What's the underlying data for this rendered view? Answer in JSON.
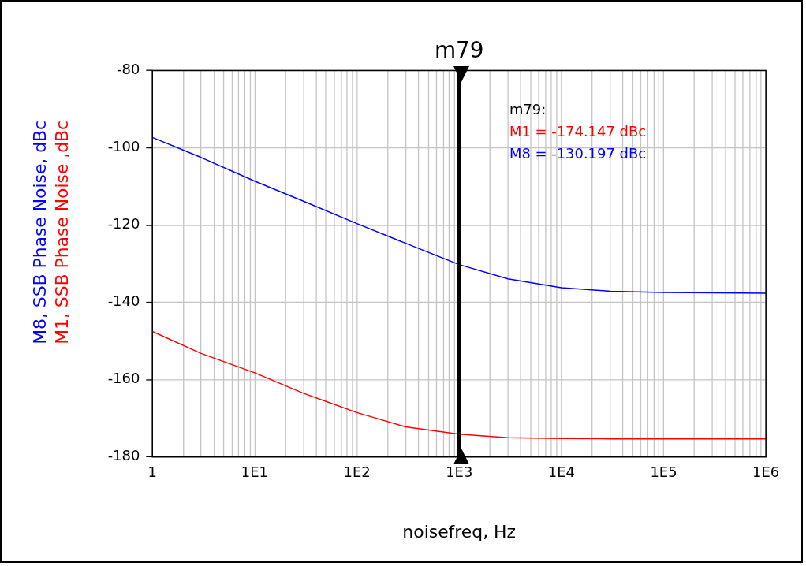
{
  "chart_data": {
    "type": "line",
    "xlabel": "noisefreq, Hz",
    "log": "x",
    "xlim": [
      1,
      1000000
    ],
    "xticks": [
      1,
      {
        "value": 10,
        "label": "1E1"
      },
      {
        "value": 100,
        "label": "1E2"
      },
      {
        "value": 1000,
        "label": "1E3"
      },
      {
        "value": 10000,
        "label": "1E4"
      },
      {
        "value": 100000,
        "label": "1E5"
      },
      {
        "value": 1000000,
        "label": "1E6"
      }
    ],
    "ylim": [
      -180,
      -80
    ],
    "yticks": [
      -180,
      -160,
      -140,
      -120,
      -100,
      -80
    ],
    "grid": true,
    "legend": false,
    "x": [
      1,
      3,
      10,
      30,
      100,
      300,
      1000,
      3000,
      10000,
      30000,
      100000,
      1000000
    ],
    "series": [
      {
        "name": "M1, SSB Phase Noise ,dBc",
        "color": "#ff0000",
        "values": [
          -147.5,
          -153.2,
          -158.2,
          -163.5,
          -168.5,
          -172.2,
          -174.1,
          -175.0,
          -175.2,
          -175.3,
          -175.3,
          -175.3
        ]
      },
      {
        "name": "M8, SSB Phase Noise, dBc",
        "color": "#0000ff",
        "values": [
          -97.3,
          -102.5,
          -108.6,
          -113.8,
          -119.6,
          -124.7,
          -130.2,
          -133.9,
          -136.2,
          -137.1,
          -137.4,
          -137.6
        ]
      }
    ],
    "ref_lines": [
      {
        "axis": "x",
        "value": 1000,
        "label": "m79",
        "color": "#000000"
      }
    ],
    "annotations": [
      "m79:",
      "M1 = -174.147 dBc",
      "M8 = -130.197 dBc"
    ]
  }
}
